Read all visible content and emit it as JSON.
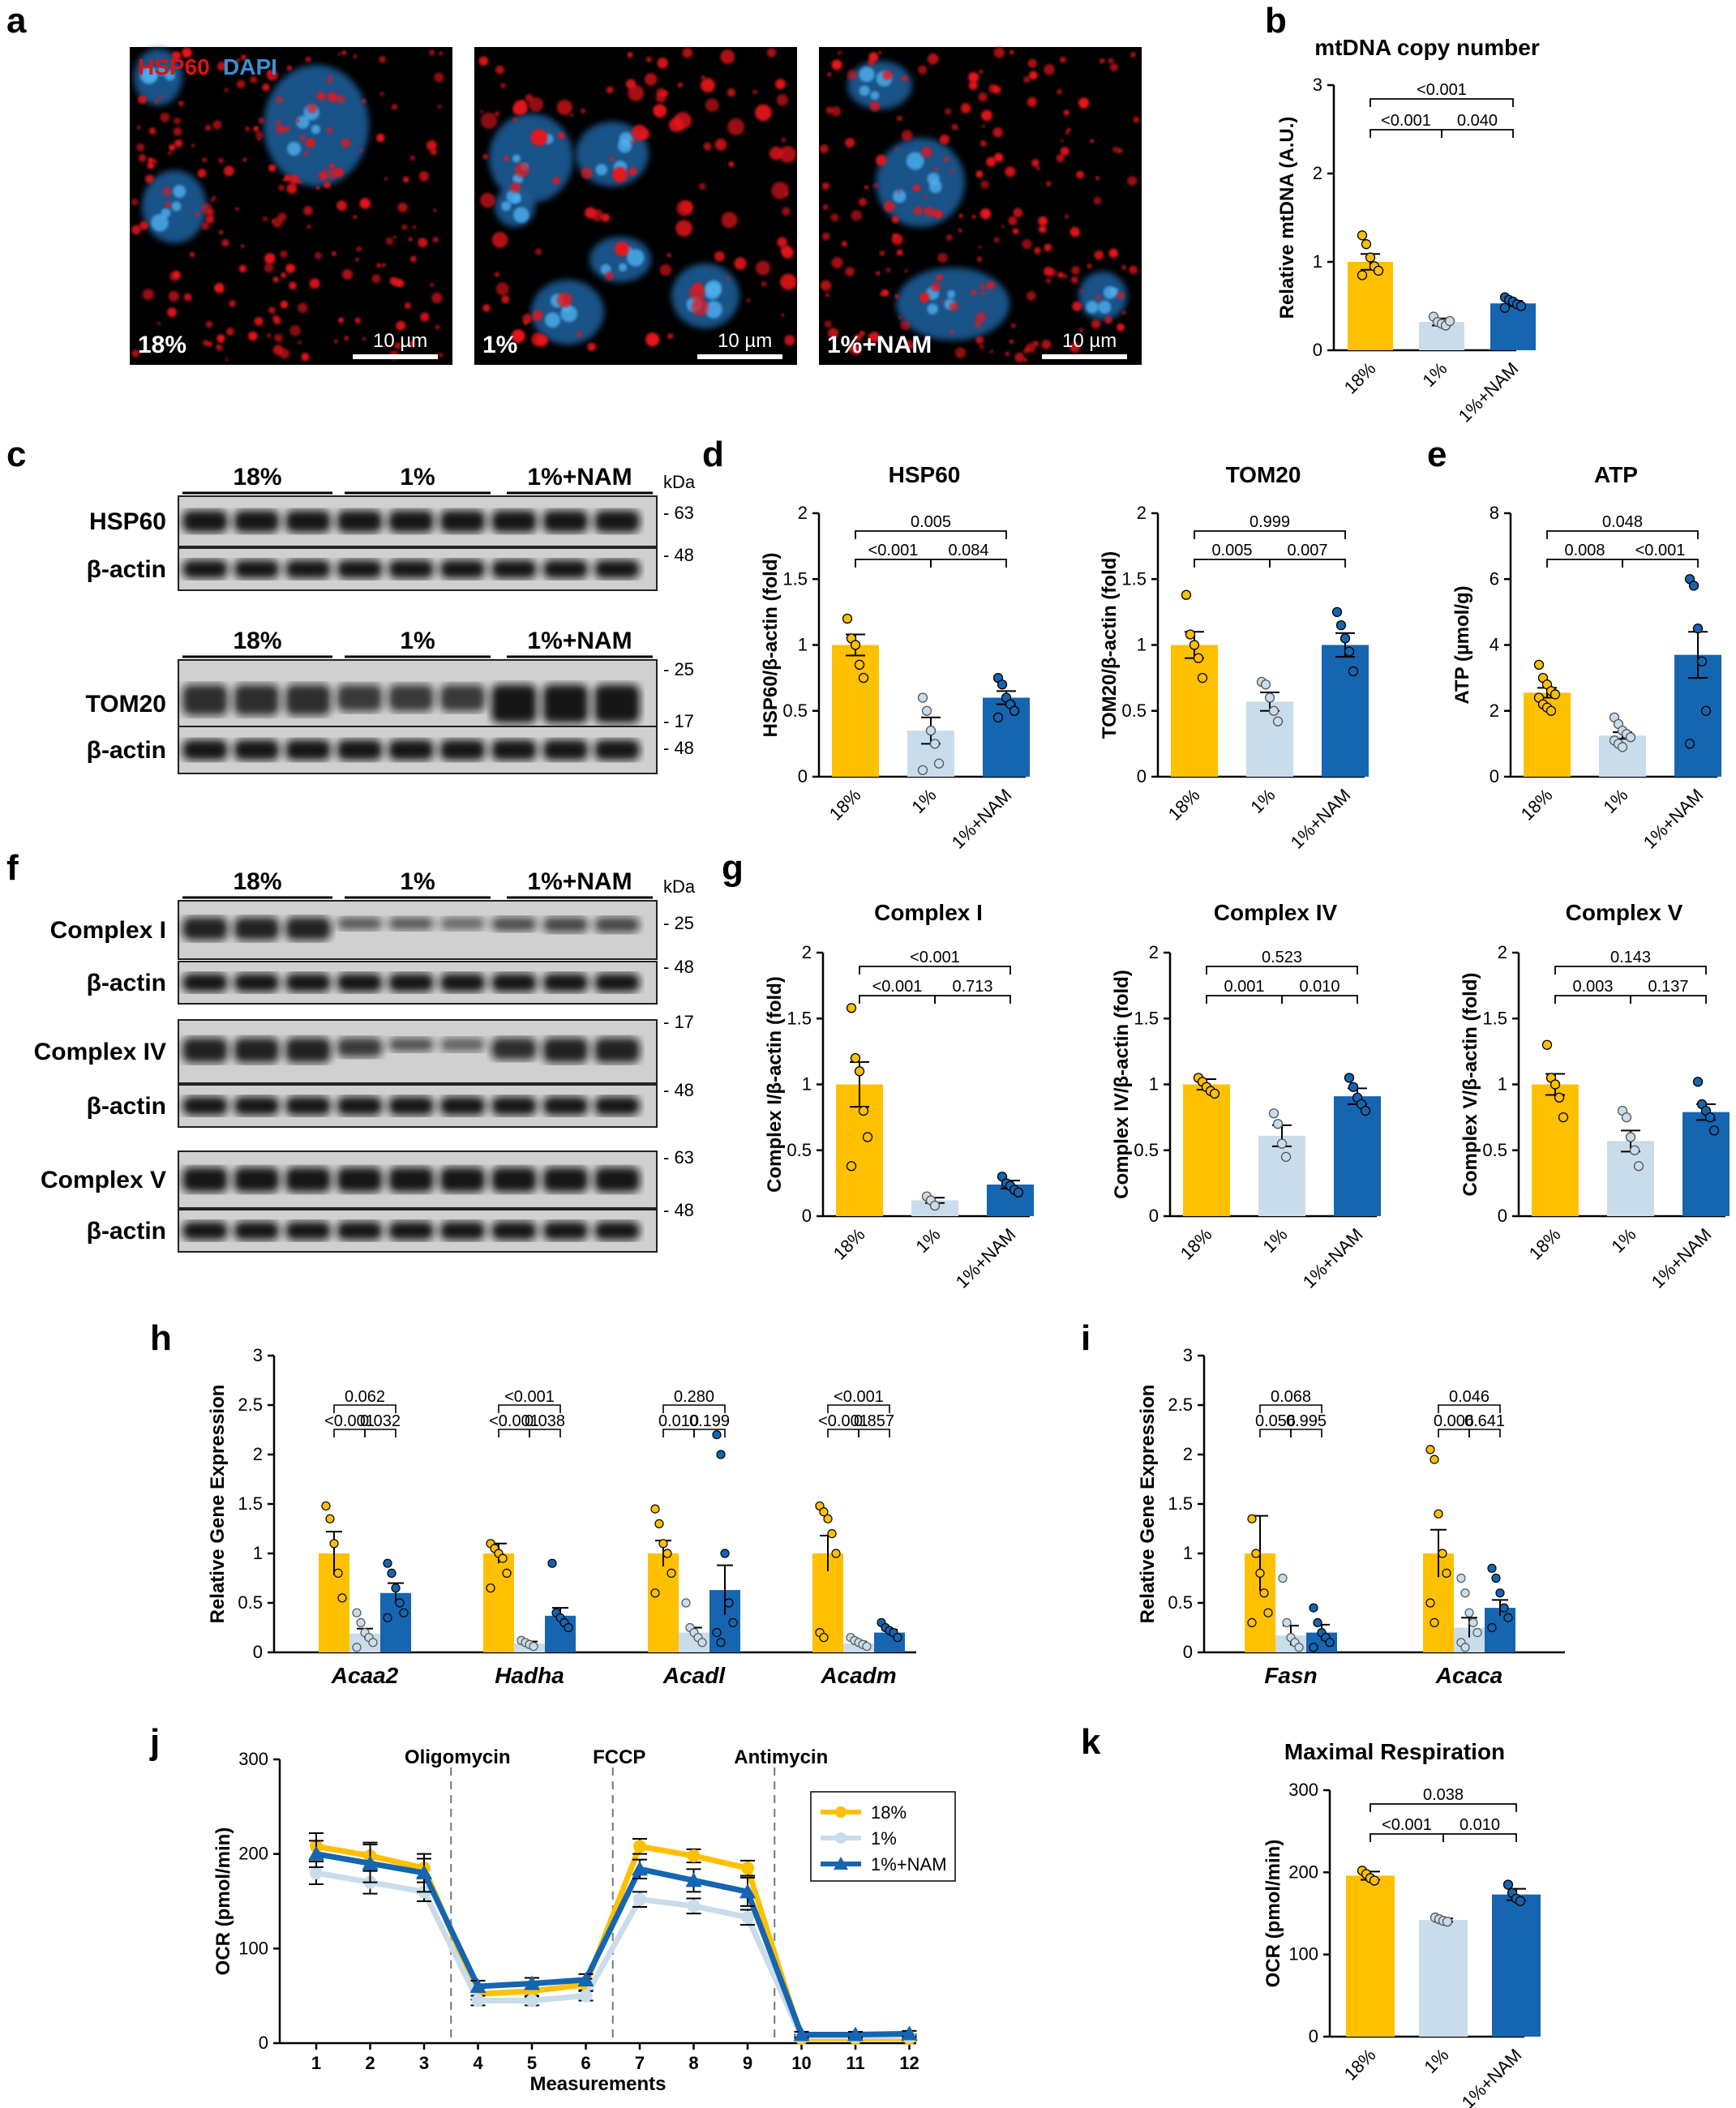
{
  "colors": {
    "g18": "#FFC000",
    "g1": "#C9DCEB",
    "gNAM": "#1565B0",
    "red": "#E01010",
    "blue": "#3A8FD6"
  },
  "panels": {
    "a": "a",
    "b": "b",
    "c": "c",
    "d": "d",
    "e": "e",
    "f": "f",
    "g": "g",
    "h": "h",
    "i": "i",
    "j": "j",
    "k": "k"
  },
  "micro": {
    "legend_hsp60": "HSP60",
    "legend_dapi": "DAPI",
    "labels": [
      "18%",
      "1%",
      "1%+NAM"
    ],
    "scale": "10 µm"
  },
  "western": {
    "kda": "kDa",
    "groups": [
      "18%",
      "1%",
      "1%+NAM"
    ],
    "c_blots": [
      {
        "label": "HSP60",
        "marker": "- 63"
      },
      {
        "label": "β-actin",
        "marker": "- 48"
      },
      {
        "label": "TOM20",
        "marker": "- 25",
        "marker2": "- 17"
      },
      {
        "label": "β-actin",
        "marker": "- 48"
      }
    ],
    "f_blots": [
      {
        "label": "Complex I",
        "marker": "- 25"
      },
      {
        "label": "β-actin",
        "marker": "- 48"
      },
      {
        "label": "Complex IV",
        "marker": "- 17"
      },
      {
        "label": "β-actin",
        "marker": "- 48"
      },
      {
        "label": "Complex V",
        "marker": "- 63"
      },
      {
        "label": "β-actin",
        "marker": "- 48"
      }
    ]
  },
  "chart_data": [
    {
      "id": "b",
      "type": "bar",
      "title": "mtDNA copy number",
      "ylabel": "Relative mtDNA (A.U.)",
      "categories": [
        "18%",
        "1%",
        "1%+NAM"
      ],
      "values": [
        1.0,
        0.32,
        0.53
      ],
      "sem": [
        0.09,
        0.04,
        0.03
      ],
      "ylim": [
        0,
        3
      ],
      "yticks": [
        0,
        1,
        2,
        3
      ],
      "points": [
        [
          1.3,
          1.2,
          1.05,
          0.95,
          0.9,
          0.85
        ],
        [
          0.38,
          0.32,
          0.3,
          0.28,
          0.33
        ],
        [
          0.6,
          0.57,
          0.55,
          0.52,
          0.5,
          0.48
        ]
      ],
      "pvalues": [
        {
          "a": 0,
          "b": 1,
          "text": "<0.001"
        },
        {
          "a": 1,
          "b": 2,
          "text": "0.040"
        },
        {
          "a": 0,
          "b": 2,
          "text": "<0.001"
        }
      ]
    },
    {
      "id": "d1",
      "type": "bar",
      "title": "HSP60",
      "ylabel": "HSP60/β-actin (fold)",
      "categories": [
        "18%",
        "1%",
        "1%+NAM"
      ],
      "values": [
        1.0,
        0.35,
        0.6
      ],
      "sem": [
        0.08,
        0.1,
        0.05
      ],
      "ylim": [
        0,
        2
      ],
      "yticks": [
        0,
        0.5,
        1.0,
        1.5,
        2.0
      ],
      "points": [
        [
          1.2,
          1.05,
          1.0,
          0.85,
          0.75
        ],
        [
          0.6,
          0.5,
          0.35,
          0.25,
          0.1,
          0.05
        ],
        [
          0.75,
          0.7,
          0.6,
          0.55,
          0.5,
          0.45
        ]
      ],
      "pvalues": [
        {
          "a": 0,
          "b": 1,
          "text": "<0.001"
        },
        {
          "a": 1,
          "b": 2,
          "text": "0.084"
        },
        {
          "a": 0,
          "b": 2,
          "text": "0.005"
        }
      ]
    },
    {
      "id": "d2",
      "type": "bar",
      "title": "TOM20",
      "ylabel": "TOM20/β-actin (fold)",
      "categories": [
        "18%",
        "1%",
        "1%+NAM"
      ],
      "values": [
        1.0,
        0.57,
        1.0
      ],
      "sem": [
        0.1,
        0.07,
        0.09
      ],
      "ylim": [
        0,
        2
      ],
      "yticks": [
        0,
        0.5,
        1.0,
        1.5,
        2.0
      ],
      "points": [
        [
          1.38,
          1.08,
          1.0,
          0.9,
          0.75
        ],
        [
          0.72,
          0.7,
          0.6,
          0.5,
          0.42
        ],
        [
          1.25,
          1.15,
          1.05,
          0.95,
          0.8
        ]
      ],
      "pvalues": [
        {
          "a": 0,
          "b": 1,
          "text": "0.005"
        },
        {
          "a": 1,
          "b": 2,
          "text": "0.007"
        },
        {
          "a": 0,
          "b": 2,
          "text": "0.999"
        }
      ]
    },
    {
      "id": "e",
      "type": "bar",
      "title": "ATP",
      "ylabel": "ATP (µmol/g)",
      "categories": [
        "18%",
        "1%",
        "1%+NAM"
      ],
      "values": [
        2.55,
        1.25,
        3.7
      ],
      "sem": [
        0.15,
        0.1,
        0.7
      ],
      "ylim": [
        0,
        8
      ],
      "yticks": [
        0,
        2,
        4,
        6,
        8
      ],
      "points": [
        [
          3.4,
          3.0,
          2.8,
          2.6,
          2.5,
          2.4,
          2.2,
          2.1,
          2.0
        ],
        [
          1.8,
          1.6,
          1.4,
          1.3,
          1.2,
          1.1,
          1.0,
          0.9
        ],
        [
          6.0,
          5.8,
          4.5,
          3.5,
          2.0,
          1.0
        ]
      ],
      "pvalues": [
        {
          "a": 0,
          "b": 1,
          "text": "0.008"
        },
        {
          "a": 1,
          "b": 2,
          "text": "<0.001"
        },
        {
          "a": 0,
          "b": 2,
          "text": "0.048"
        }
      ]
    },
    {
      "id": "g1",
      "type": "bar",
      "title": "Complex I",
      "ylabel": "Complex I/β-actin (fold)",
      "categories": [
        "18%",
        "1%",
        "1%+NAM"
      ],
      "values": [
        1.0,
        0.12,
        0.24
      ],
      "sem": [
        0.17,
        0.02,
        0.03
      ],
      "ylim": [
        0,
        2
      ],
      "yticks": [
        0,
        0.5,
        1.0,
        1.5,
        2.0
      ],
      "points": [
        [
          1.58,
          1.2,
          1.1,
          0.8,
          0.6,
          0.38
        ],
        [
          0.15,
          0.12,
          0.08
        ],
        [
          0.3,
          0.25,
          0.23,
          0.2,
          0.18
        ]
      ],
      "pvalues": [
        {
          "a": 0,
          "b": 1,
          "text": "<0.001"
        },
        {
          "a": 1,
          "b": 2,
          "text": "0.713"
        },
        {
          "a": 0,
          "b": 2,
          "text": "<0.001"
        }
      ]
    },
    {
      "id": "g2",
      "type": "bar",
      "title": "Complex IV",
      "ylabel": "Complex IV/β-actin (fold)",
      "categories": [
        "18%",
        "1%",
        "1%+NAM"
      ],
      "values": [
        1.0,
        0.61,
        0.91
      ],
      "sem": [
        0.04,
        0.08,
        0.06
      ],
      "ylim": [
        0,
        2
      ],
      "yticks": [
        0,
        0.5,
        1.0,
        1.5,
        2.0
      ],
      "points": [
        [
          1.05,
          1.02,
          0.98,
          0.95,
          0.93
        ],
        [
          0.78,
          0.7,
          0.55,
          0.45
        ],
        [
          1.05,
          0.98,
          0.9,
          0.85,
          0.8
        ]
      ],
      "pvalues": [
        {
          "a": 0,
          "b": 1,
          "text": "0.001"
        },
        {
          "a": 1,
          "b": 2,
          "text": "0.010"
        },
        {
          "a": 0,
          "b": 2,
          "text": "0.523"
        }
      ]
    },
    {
      "id": "g3",
      "type": "bar",
      "title": "Complex V",
      "ylabel": "Complex V/β-actin (fold)",
      "categories": [
        "18%",
        "1%",
        "1%+NAM"
      ],
      "values": [
        1.0,
        0.57,
        0.79
      ],
      "sem": [
        0.08,
        0.08,
        0.06
      ],
      "ylim": [
        0,
        2
      ],
      "yticks": [
        0,
        0.5,
        1.0,
        1.5,
        2.0
      ],
      "points": [
        [
          1.3,
          1.05,
          1.0,
          0.9,
          0.75
        ],
        [
          0.8,
          0.75,
          0.6,
          0.5,
          0.38
        ],
        [
          1.02,
          0.85,
          0.8,
          0.75,
          0.65
        ]
      ],
      "pvalues": [
        {
          "a": 0,
          "b": 1,
          "text": "0.003"
        },
        {
          "a": 1,
          "b": 2,
          "text": "0.137"
        },
        {
          "a": 0,
          "b": 2,
          "text": "0.143"
        }
      ]
    },
    {
      "id": "h",
      "type": "bar",
      "ylabel": "Relative Gene Expression",
      "genes": [
        "Acaa2",
        "Hadha",
        "Acadl",
        "Acadm"
      ],
      "values": [
        [
          1.0,
          0.19,
          0.6
        ],
        [
          1.0,
          0.09,
          0.37
        ],
        [
          1.0,
          0.2,
          0.63
        ],
        [
          1.0,
          0.09,
          0.2
        ]
      ],
      "sem": [
        [
          0.22,
          0.05,
          0.1
        ],
        [
          0.1,
          0.02,
          0.08
        ],
        [
          0.13,
          0.05,
          0.25
        ],
        [
          0.18,
          0.02,
          0.03
        ]
      ],
      "ylim": [
        0,
        3
      ],
      "yticks": [
        0,
        0.5,
        1.0,
        1.5,
        2.0,
        2.5,
        3.0
      ],
      "points": [
        [
          [
            1.48,
            1.35,
            1.1,
            0.8,
            0.55
          ],
          [
            0.4,
            0.3,
            0.2,
            0.15,
            0.1,
            0.05
          ],
          [
            0.9,
            0.8,
            0.65,
            0.5,
            0.4,
            0.35
          ]
        ],
        [
          [
            1.1,
            1.05,
            1.0,
            0.95,
            0.8,
            0.65
          ],
          [
            0.12,
            0.1,
            0.08,
            0.06
          ],
          [
            0.9,
            0.4,
            0.35,
            0.3,
            0.25
          ]
        ],
        [
          [
            1.45,
            1.3,
            1.1,
            1.0,
            0.8,
            0.6
          ],
          [
            0.5,
            0.25,
            0.2,
            0.15,
            0.1
          ],
          [
            2.2,
            2.0,
            1.0,
            0.5,
            0.3,
            0.2,
            0.1
          ]
        ],
        [
          [
            1.48,
            1.42,
            1.35,
            1.2,
            1.0,
            0.2,
            0.15
          ],
          [
            0.15,
            0.12,
            0.1,
            0.08,
            0.06
          ],
          [
            0.3,
            0.25,
            0.22,
            0.2,
            0.15
          ]
        ]
      ],
      "pvalues": [
        [
          {
            "t": "<0.001"
          },
          {
            "t": "0.032"
          },
          {
            "t": "0.062"
          }
        ],
        [
          {
            "t": "<0.001"
          },
          {
            "t": "0.038"
          },
          {
            "t": "<0.001"
          }
        ],
        [
          {
            "t": "0.010"
          },
          {
            "t": "0.199"
          },
          {
            "t": "0.280"
          }
        ],
        [
          {
            "t": "<0.001"
          },
          {
            "t": "0.857"
          },
          {
            "t": "<0.001"
          }
        ]
      ]
    },
    {
      "id": "i",
      "type": "bar",
      "ylabel": "Relative Gene Expression",
      "genes": [
        "Fasn",
        "Acaca"
      ],
      "values": [
        [
          1.0,
          0.17,
          0.2
        ],
        [
          1.0,
          0.25,
          0.45
        ]
      ],
      "sem": [
        [
          0.38,
          0.1,
          0.08
        ],
        [
          0.24,
          0.1,
          0.08
        ]
      ],
      "ylim": [
        0,
        3
      ],
      "yticks": [
        0,
        0.5,
        1.0,
        1.5,
        2.0,
        2.5,
        3.0
      ],
      "points": [
        [
          [
            1.35,
            1.0,
            0.8,
            0.6,
            0.4,
            0.3
          ],
          [
            0.75,
            0.3,
            0.15,
            0.1,
            0.05
          ],
          [
            0.45,
            0.3,
            0.2,
            0.15,
            0.1,
            0.05
          ]
        ],
        [
          [
            2.05,
            1.95,
            1.4,
            1.0,
            0.8,
            0.5,
            0.3
          ],
          [
            0.75,
            0.6,
            0.4,
            0.3,
            0.2,
            0.1,
            0.05
          ],
          [
            0.85,
            0.75,
            0.6,
            0.45,
            0.35,
            0.25
          ]
        ]
      ],
      "pvalues": [
        [
          {
            "t": "0.056"
          },
          {
            "t": "0.995"
          },
          {
            "t": "0.068"
          }
        ],
        [
          {
            "t": "0.006"
          },
          {
            "t": "0.641"
          },
          {
            "t": "0.046"
          }
        ]
      ]
    },
    {
      "id": "j",
      "type": "line",
      "xlabel": "Measurements",
      "ylabel": "OCR (pmol/min)",
      "x": [
        1,
        2,
        3,
        4,
        5,
        6,
        7,
        8,
        9,
        10,
        11,
        12
      ],
      "ylim": [
        0,
        300
      ],
      "yticks": [
        0,
        100,
        200,
        300
      ],
      "annotations": [
        {
          "x": 3.5,
          "text": "Oligomycin"
        },
        {
          "x": 6.5,
          "text": "FCCP"
        },
        {
          "x": 9.5,
          "text": "Antimycin"
        }
      ],
      "series": [
        {
          "name": "18%",
          "color": "#FFC000",
          "marker": "circle",
          "values": [
            208,
            198,
            185,
            52,
            55,
            62,
            208,
            198,
            185,
            5,
            5,
            5
          ],
          "err": [
            14,
            14,
            10,
            6,
            6,
            6,
            8,
            7,
            8,
            2,
            2,
            2
          ]
        },
        {
          "name": "1%",
          "color": "#C9DCEB",
          "marker": "circle",
          "values": [
            180,
            170,
            160,
            45,
            45,
            50,
            152,
            145,
            133,
            7,
            7,
            7
          ],
          "err": [
            12,
            12,
            10,
            5,
            5,
            5,
            8,
            8,
            8,
            2,
            2,
            2
          ]
        },
        {
          "name": "1%+NAM",
          "color": "#1565B0",
          "marker": "triangle",
          "values": [
            200,
            190,
            180,
            60,
            63,
            67,
            184,
            172,
            160,
            9,
            9,
            10
          ],
          "err": [
            14,
            20,
            20,
            6,
            6,
            6,
            10,
            12,
            15,
            3,
            3,
            3
          ]
        }
      ]
    },
    {
      "id": "k",
      "type": "bar",
      "title": "Maximal Respiration",
      "ylabel": "OCR (pmol/min)",
      "categories": [
        "18%",
        "1%",
        "1%+NAM"
      ],
      "values": [
        196,
        142,
        173
      ],
      "sem": [
        5,
        2,
        7
      ],
      "ylim": [
        0,
        300
      ],
      "yticks": [
        0,
        100,
        200,
        300
      ],
      "points": [
        [
          202,
          198,
          193,
          190
        ],
        [
          145,
          143,
          141,
          140
        ],
        [
          185,
          175,
          168,
          165
        ]
      ],
      "pvalues": [
        {
          "a": 0,
          "b": 1,
          "text": "<0.001"
        },
        {
          "a": 1,
          "b": 2,
          "text": "0.010"
        },
        {
          "a": 0,
          "b": 2,
          "text": "0.038"
        }
      ]
    }
  ]
}
